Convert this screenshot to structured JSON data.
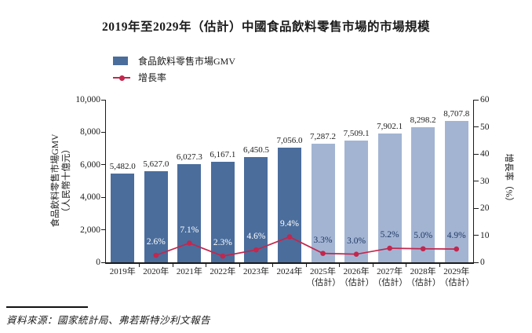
{
  "title": "2019年至2029年（估計）中國食品飲料零售市場的市場規模",
  "legend": {
    "gmv": "食品飲料零售市場GMV",
    "growth": "增長率"
  },
  "axes": {
    "left": {
      "title_line1": "食品飲料零售市場GMV",
      "title_line2": "（人民幣十億元）",
      "range": [
        0,
        10000
      ],
      "ticks": [
        {
          "v": 0,
          "label": "0"
        },
        {
          "v": 2000,
          "label": "2,000"
        },
        {
          "v": 4000,
          "label": "4,000"
        },
        {
          "v": 6000,
          "label": "6,000"
        },
        {
          "v": 8000,
          "label": "8,000"
        },
        {
          "v": 10000,
          "label": "10,000"
        }
      ]
    },
    "right": {
      "title": "增長率（%）",
      "range": [
        0,
        60
      ],
      "ticks": [
        {
          "v": 0,
          "label": "0"
        },
        {
          "v": 10,
          "label": "10"
        },
        {
          "v": 20,
          "label": "20"
        },
        {
          "v": 30,
          "label": "30"
        },
        {
          "v": 40,
          "label": "40"
        },
        {
          "v": 50,
          "label": "50"
        },
        {
          "v": 60,
          "label": "60"
        }
      ]
    }
  },
  "colors": {
    "bar_actual": "#4a6d9c",
    "bar_estimate": "#a3b4d3",
    "line": "#c2274d",
    "pct_on_dark": "#ffffff",
    "pct_on_light": "#1f3864",
    "axis": "#1a1a1a"
  },
  "chart_data": {
    "type": "bar+line combo",
    "title": "2019年至2029年（估計）中國食品飲料零售市場的市場規模",
    "bar_series": {
      "name": "食品飲料零售市場GMV",
      "unit": "人民幣十億元",
      "axis": "left"
    },
    "line_series": {
      "name": "增長率",
      "unit": "%",
      "axis": "right"
    },
    "left_axis_range": [
      0,
      10000
    ],
    "right_axis_range": [
      0,
      60
    ],
    "legend_position": "top-left",
    "grid": false,
    "points": [
      {
        "category": "2019年",
        "note": "",
        "estimate": false,
        "gmv": 5482.0,
        "gmv_label": "5,482.0",
        "growth": null,
        "growth_label": null
      },
      {
        "category": "2020年",
        "note": "",
        "estimate": false,
        "gmv": 5627.0,
        "gmv_label": "5,627.0",
        "growth": 2.6,
        "growth_label": "2.6%"
      },
      {
        "category": "2021年",
        "note": "",
        "estimate": false,
        "gmv": 6027.3,
        "gmv_label": "6,027.3",
        "growth": 7.1,
        "growth_label": "7.1%"
      },
      {
        "category": "2022年",
        "note": "",
        "estimate": false,
        "gmv": 6167.1,
        "gmv_label": "6,167.1",
        "growth": 2.3,
        "growth_label": "2.3%"
      },
      {
        "category": "2023年",
        "note": "",
        "estimate": false,
        "gmv": 6450.5,
        "gmv_label": "6,450.5",
        "growth": 4.6,
        "growth_label": "4.6%"
      },
      {
        "category": "2024年",
        "note": "",
        "estimate": false,
        "gmv": 7056.0,
        "gmv_label": "7,056.0",
        "growth": 9.4,
        "growth_label": "9.4%"
      },
      {
        "category": "2025年",
        "note": "（估計）",
        "estimate": true,
        "gmv": 7287.2,
        "gmv_label": "7,287.2",
        "growth": 3.3,
        "growth_label": "3.3%"
      },
      {
        "category": "2026年",
        "note": "（估計）",
        "estimate": true,
        "gmv": 7509.1,
        "gmv_label": "7,509.1",
        "growth": 3.0,
        "growth_label": "3.0%"
      },
      {
        "category": "2027年",
        "note": "（估計）",
        "estimate": true,
        "gmv": 7902.1,
        "gmv_label": "7,902.1",
        "growth": 5.2,
        "growth_label": "5.2%"
      },
      {
        "category": "2028年",
        "note": "（估計）",
        "estimate": true,
        "gmv": 8298.2,
        "gmv_label": "8,298.2",
        "growth": 5.0,
        "growth_label": "5.0%"
      },
      {
        "category": "2029年",
        "note": "（估計）",
        "estimate": true,
        "gmv": 8707.8,
        "gmv_label": "8,707.8",
        "growth": 4.9,
        "growth_label": "4.9%"
      }
    ]
  },
  "source": "資料來源：國家統計局、弗若斯特沙利文報告"
}
